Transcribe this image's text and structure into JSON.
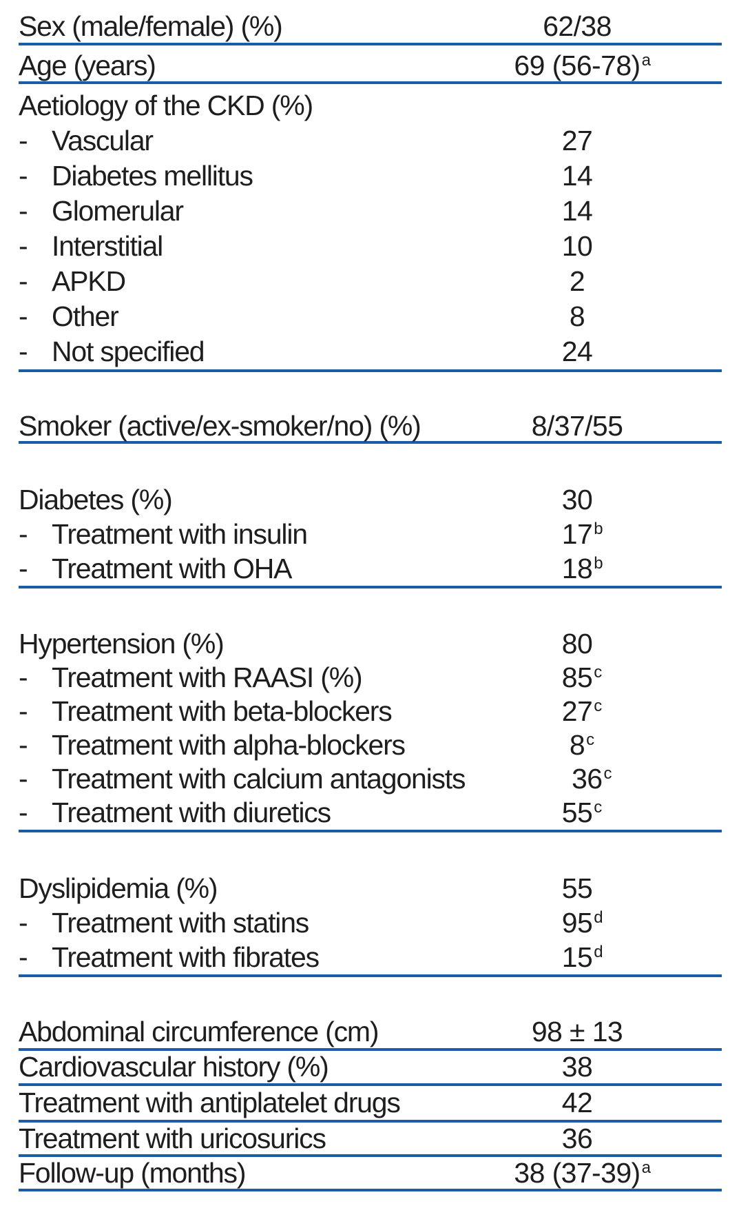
{
  "meta": {
    "bullet": "-",
    "rule_color": "#1b5ca9",
    "text_color": "#1e1e1e"
  },
  "table": {
    "sections": [
      {
        "rows": [
          {
            "label": "Sex (male/female) (%)",
            "value": "62/38"
          }
        ]
      },
      {
        "rows": [
          {
            "label": "Age (years)",
            "value": "69 (56-78)",
            "sup": "a"
          }
        ]
      },
      {
        "rows": [
          {
            "label": "Aetiology of the CKD (%)",
            "value": ""
          },
          {
            "label": "Vascular",
            "value": "27",
            "indent": true
          },
          {
            "label": "Diabetes mellitus",
            "value": "14",
            "indent": true
          },
          {
            "label": "Glomerular",
            "value": "14",
            "indent": true
          },
          {
            "label": "Interstitial",
            "value": "10",
            "indent": true
          },
          {
            "label": "APKD",
            "value": "2",
            "indent": true
          },
          {
            "label": "Other",
            "value": "8",
            "indent": true
          },
          {
            "label": "Not specified",
            "value": "24",
            "indent": true
          }
        ]
      },
      {
        "rows": [
          {
            "label": "Smoker (active/ex-smoker/no) (%)",
            "value": "8/37/55"
          }
        ]
      },
      {
        "rows": [
          {
            "label": "Diabetes (%)",
            "value": "30"
          },
          {
            "label": "Treatment with insulin",
            "value": "17",
            "sup": "b",
            "indent": true
          },
          {
            "label": "Treatment with OHA",
            "value": "18",
            "sup": "b",
            "indent": true
          }
        ]
      },
      {
        "rows": [
          {
            "label": "Hypertension (%)",
            "value": "80"
          },
          {
            "label": "Treatment with RAASI (%)",
            "value": "85",
            "sup": "c",
            "indent": true
          },
          {
            "label": "Treatment with beta-blockers",
            "value": "27",
            "sup": "c",
            "indent": true
          },
          {
            "label": "Treatment with alpha-blockers",
            "value": "8",
            "sup": "c",
            "indent": true
          },
          {
            "label": "Treatment with calcium antagonists",
            "value": "36",
            "sup": "c",
            "indent": true
          },
          {
            "label": "Treatment with diuretics",
            "value": "55",
            "sup": "c",
            "indent": true
          }
        ]
      },
      {
        "rows": [
          {
            "label": "Dyslipidemia (%)",
            "value": "55"
          },
          {
            "label": "Treatment with statins",
            "value": "95",
            "sup": "d",
            "indent": true
          },
          {
            "label": "Treatment with fibrates",
            "value": "15",
            "sup": "d",
            "indent": true
          }
        ]
      },
      {
        "rows": [
          {
            "label": "Abdominal circumference (cm)",
            "value": "98 ± 13"
          }
        ]
      },
      {
        "rows": [
          {
            "label": "Cardiovascular history (%)",
            "value": "38"
          }
        ]
      },
      {
        "rows": [
          {
            "label": "Treatment with antiplatelet drugs",
            "value": "42"
          }
        ]
      },
      {
        "rows": [
          {
            "label": "Treatment with uricosurics",
            "value": "36"
          }
        ]
      },
      {
        "rows": [
          {
            "label": "Follow-up (months)",
            "value": "38 (37-39)",
            "sup": "a"
          }
        ]
      }
    ]
  }
}
